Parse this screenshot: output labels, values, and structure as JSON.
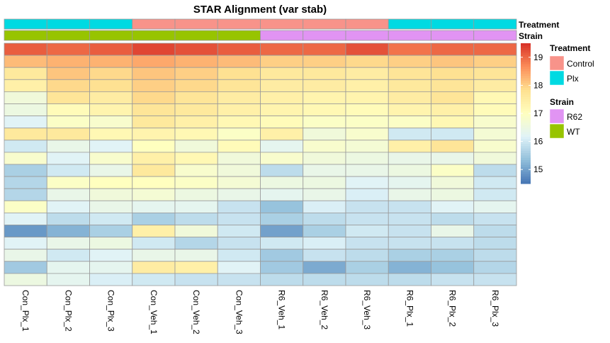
{
  "chart_data": {
    "type": "heatmap",
    "title": "STAR Alignment (var stab)",
    "columns": [
      "Con_Plx_1",
      "Con_Plx_2",
      "Con_Plx_3",
      "Con_Veh_1",
      "Con_Veh_2",
      "Con_Veh_3",
      "R6_Veh_1",
      "R6_Veh_2",
      "R6_Veh_3",
      "R6_Plx_1",
      "R6_Plx_2",
      "R6_Plx_3"
    ],
    "annotations": {
      "Treatment": [
        "Plx",
        "Plx",
        "Plx",
        "Control",
        "Control",
        "Control",
        "Control",
        "Control",
        "Control",
        "Plx",
        "Plx",
        "Plx"
      ],
      "Strain": [
        "WT",
        "WT",
        "WT",
        "WT",
        "WT",
        "WT",
        "R62",
        "R62",
        "R62",
        "R62",
        "R62",
        "R62"
      ]
    },
    "annotation_labels": [
      "Treatment",
      "Strain"
    ],
    "annotation_colors": {
      "Treatment": {
        "Control": "#F8938A",
        "Plx": "#00DAE2"
      },
      "Strain": {
        "R62": "#E194F3",
        "WT": "#97C400"
      }
    },
    "legend": {
      "groups": [
        {
          "title": "Treatment",
          "items": [
            "Control",
            "Plx"
          ]
        },
        {
          "title": "Strain",
          "items": [
            "R62",
            "WT"
          ]
        }
      ]
    },
    "colorbar": {
      "ticks": [
        15,
        16,
        17,
        18,
        19
      ],
      "range": [
        14.5,
        19.5
      ],
      "colors": [
        "#4575B4",
        "#91BFDB",
        "#E0F3F8",
        "#FFFFBF",
        "#FEE090",
        "#FC8D59",
        "#D73027"
      ]
    },
    "values": [
      [
        19.1,
        19.0,
        19.1,
        19.3,
        19.2,
        19.1,
        19.0,
        19.0,
        19.2,
        18.9,
        19.0,
        19.0
      ],
      [
        18.2,
        18.3,
        18.3,
        18.4,
        18.3,
        18.2,
        18.0,
        18.0,
        17.9,
        18.0,
        18.1,
        18.0
      ],
      [
        17.6,
        18.1,
        17.9,
        18.1,
        18.0,
        17.8,
        17.6,
        17.6,
        17.5,
        17.7,
        17.8,
        17.7
      ],
      [
        17.4,
        17.9,
        17.8,
        18.0,
        17.9,
        17.7,
        17.5,
        17.5,
        17.4,
        17.6,
        17.7,
        17.5
      ],
      [
        16.6,
        17.7,
        17.5,
        17.9,
        17.7,
        17.5,
        17.4,
        17.3,
        17.3,
        17.5,
        17.7,
        17.2
      ],
      [
        16.5,
        17.1,
        17.3,
        17.7,
        17.6,
        17.4,
        17.3,
        17.2,
        17.1,
        17.3,
        17.4,
        17.1
      ],
      [
        16.2,
        16.9,
        16.8,
        17.6,
        17.4,
        17.2,
        17.1,
        16.9,
        16.9,
        16.9,
        17.2,
        16.8
      ],
      [
        17.6,
        17.6,
        17.2,
        17.3,
        17.2,
        16.9,
        17.4,
        16.6,
        16.8,
        16.0,
        16.0,
        16.7
      ],
      [
        16.0,
        16.4,
        16.2,
        17.0,
        16.6,
        17.1,
        16.3,
        16.8,
        16.7,
        17.4,
        17.7,
        16.8
      ],
      [
        16.8,
        16.2,
        16.8,
        17.4,
        17.2,
        16.6,
        16.8,
        16.6,
        16.5,
        16.4,
        16.4,
        16.6
      ],
      [
        15.6,
        16.0,
        16.4,
        17.6,
        16.8,
        16.6,
        15.8,
        16.4,
        16.4,
        16.5,
        16.9,
        15.8
      ],
      [
        15.7,
        16.9,
        17.0,
        17.0,
        16.9,
        16.7,
        16.5,
        16.5,
        16.2,
        16.3,
        16.6,
        16.0
      ],
      [
        15.7,
        16.4,
        16.6,
        16.7,
        16.5,
        16.4,
        16.3,
        16.4,
        16.1,
        16.4,
        16.5,
        16.0
      ],
      [
        16.9,
        16.2,
        16.4,
        16.3,
        16.3,
        15.9,
        15.4,
        16.1,
        15.9,
        15.9,
        16.2,
        16.3
      ],
      [
        16.2,
        15.8,
        16.0,
        15.6,
        15.8,
        15.9,
        15.6,
        15.8,
        15.9,
        15.9,
        15.8,
        15.9
      ],
      [
        14.9,
        15.2,
        15.6,
        17.4,
        16.6,
        16.0,
        15.0,
        15.6,
        16.0,
        15.9,
        16.4,
        15.8
      ],
      [
        16.2,
        16.4,
        16.5,
        16.0,
        15.7,
        15.9,
        16.0,
        16.1,
        15.9,
        15.9,
        15.9,
        15.8
      ],
      [
        16.4,
        16.0,
        16.2,
        16.4,
        16.4,
        16.0,
        15.5,
        15.9,
        15.8,
        15.6,
        15.6,
        15.8
      ],
      [
        15.5,
        16.3,
        16.3,
        17.5,
        17.4,
        16.2,
        15.5,
        15.1,
        15.6,
        15.2,
        15.4,
        15.7
      ],
      [
        16.5,
        16.3,
        16.1,
        16.0,
        15.9,
        15.9,
        15.8,
        15.8,
        15.8,
        15.8,
        15.9,
        15.9
      ]
    ]
  }
}
